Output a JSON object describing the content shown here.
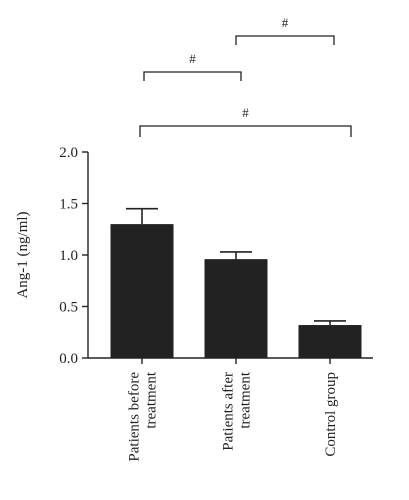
{
  "chart_data": {
    "type": "bar",
    "categories": [
      "Patients before treatment",
      "Patients after treatment",
      "Control group"
    ],
    "category_lines": [
      [
        "Patients before",
        "treatment"
      ],
      [
        "Patients after",
        "treatment"
      ],
      [
        "Control group"
      ]
    ],
    "values": [
      1.3,
      0.96,
      0.32
    ],
    "errors": [
      0.15,
      0.07,
      0.04
    ],
    "ylabel": "Ang-1 (ng/ml)",
    "ylim": [
      0,
      2.0
    ],
    "yticks": [
      "0.0",
      "0.5",
      "1.0",
      "1.5",
      "2.0"
    ],
    "bar_color": "#222222",
    "significance": [
      {
        "from": 0,
        "to": 1,
        "label": "#"
      },
      {
        "from": 1,
        "to": 2,
        "label": "#"
      },
      {
        "from": 0,
        "to": 2,
        "label": "#"
      }
    ]
  }
}
